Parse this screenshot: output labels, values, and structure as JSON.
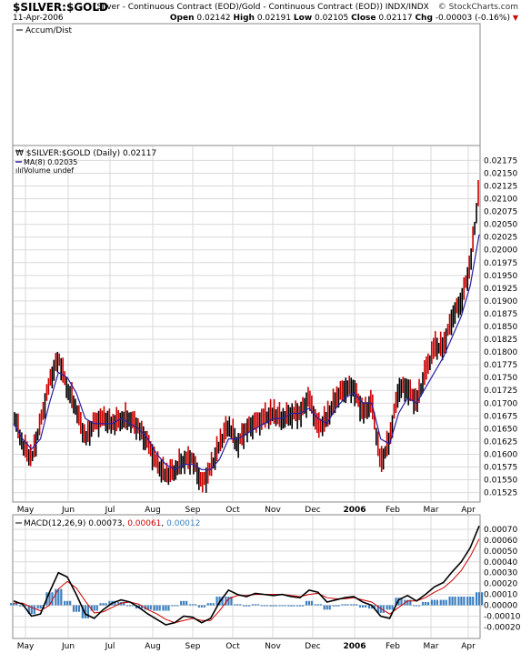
{
  "header": {
    "symbol": "$SILVER:$GOLD",
    "description": "(Silver - Continuous Contract (EOD)/Gold - Continuous Contract (EOD)) INDX/INDX",
    "source": "© StockCharts.com",
    "date": "11-Apr-2006",
    "open_label": "Open",
    "open": "0.02142",
    "high_label": "High",
    "high": "0.02191",
    "low_label": "Low",
    "low": "0.02105",
    "close_label": "Close",
    "close": "0.02117",
    "chg_label": "Chg",
    "chg": "-0.00003 (-0.16%)",
    "chg_arrow": "▼"
  },
  "accum_panel": {
    "label": "Accum/Dist"
  },
  "price_panel": {
    "legend": "$SILVER:$GOLD (Daily) 0.02117",
    "ma_legend": "MA(8) 0.02035",
    "volume_legend": "Volume undef"
  },
  "macd_panel": {
    "label_prefix": "MACD(12,26,9)",
    "v1": "0.00073",
    "v2": "0.00061",
    "v3": "0.00012"
  },
  "x_labels": [
    {
      "t": "May",
      "bold": false
    },
    {
      "t": "Jun",
      "bold": false
    },
    {
      "t": "Jul",
      "bold": false
    },
    {
      "t": "Aug",
      "bold": false
    },
    {
      "t": "Sep",
      "bold": false
    },
    {
      "t": "Oct",
      "bold": false
    },
    {
      "t": "Nov",
      "bold": false
    },
    {
      "t": "Dec",
      "bold": false
    },
    {
      "t": "2006",
      "bold": true
    },
    {
      "t": "Feb",
      "bold": false
    },
    {
      "t": "Mar",
      "bold": false
    },
    {
      "t": "Apr",
      "bold": false
    }
  ],
  "colors": {
    "up": "#000000",
    "down": "#cc0000",
    "ma": "#2a1fa0",
    "macd": "#000000",
    "signal": "#cc0000",
    "hist": "#3c7fc0",
    "grid": "#d9d9d9",
    "macd_v2": "#cc0000",
    "macd_v3": "#3c7fc0"
  },
  "chart_data": [
    {
      "type": "line",
      "panel": "price",
      "title": "$SILVER:$GOLD (Daily) 0.02117",
      "ylim": [
        0.0151,
        0.0219
      ],
      "y_ticks": [
        "0.02175",
        "0.02150",
        "0.02125",
        "0.02100",
        "0.02075",
        "0.02050",
        "0.02025",
        "0.02000",
        "0.01975",
        "0.01950",
        "0.01925",
        "0.01900",
        "0.01875",
        "0.01850",
        "0.01825",
        "0.01800",
        "0.01775",
        "0.01750",
        "0.01725",
        "0.01700",
        "0.01675",
        "0.01650",
        "0.01625",
        "0.01600",
        "0.01575",
        "0.01550",
        "0.01525"
      ],
      "x_ticks": [
        "May",
        "Jun",
        "Jul",
        "Aug",
        "Sep",
        "Oct",
        "Nov",
        "Dec",
        "2006",
        "Feb",
        "Mar",
        "Apr"
      ],
      "x": [
        0,
        5,
        10,
        15,
        20,
        25,
        30,
        35,
        40,
        45,
        50,
        55,
        60,
        65,
        70,
        75,
        80,
        85,
        90,
        95,
        100,
        105,
        110,
        115,
        120,
        125,
        130,
        135,
        140,
        145,
        150,
        155,
        160,
        165,
        170,
        175,
        180,
        185,
        190,
        195,
        200,
        205,
        210,
        215,
        220,
        225,
        230,
        235,
        240,
        245,
        250,
        255,
        260
      ],
      "series": [
        {
          "name": "$SILVER:$GOLD",
          "values": [
            0.0168,
            0.0162,
            0.0159,
            0.0166,
            0.0174,
            0.0179,
            0.0173,
            0.0169,
            0.0163,
            0.0166,
            0.0167,
            0.0166,
            0.0167,
            0.0167,
            0.0165,
            0.0162,
            0.0158,
            0.0156,
            0.0157,
            0.0159,
            0.0159,
            0.0154,
            0.0157,
            0.0162,
            0.0166,
            0.0162,
            0.0165,
            0.0166,
            0.0167,
            0.0168,
            0.0167,
            0.0168,
            0.0168,
            0.0171,
            0.0165,
            0.0167,
            0.0171,
            0.0173,
            0.0173,
            0.0168,
            0.017,
            0.0158,
            0.0163,
            0.0173,
            0.0173,
            0.017,
            0.0176,
            0.0181,
            0.0181,
            0.0187,
            0.019,
            0.0197,
            0.0212
          ]
        },
        {
          "name": "MA(8) 0.02035",
          "values": [
            0.0166,
            0.0163,
            0.0161,
            0.0163,
            0.017,
            0.0176,
            0.0175,
            0.0172,
            0.0167,
            0.0166,
            0.0166,
            0.0166,
            0.0167,
            0.0166,
            0.0165,
            0.0163,
            0.016,
            0.0158,
            0.0157,
            0.0158,
            0.0158,
            0.0157,
            0.0157,
            0.0159,
            0.0163,
            0.0163,
            0.0164,
            0.0165,
            0.0166,
            0.0167,
            0.0167,
            0.0168,
            0.0168,
            0.0169,
            0.0167,
            0.0166,
            0.0169,
            0.0171,
            0.0172,
            0.017,
            0.017,
            0.0163,
            0.0162,
            0.0168,
            0.0171,
            0.017,
            0.0173,
            0.0176,
            0.0179,
            0.0183,
            0.0187,
            0.0193,
            0.0203
          ]
        }
      ]
    },
    {
      "type": "line",
      "panel": "macd",
      "title": "MACD(12,26,9)",
      "ylim": [
        -0.00028,
        0.0008
      ],
      "y_ticks": [
        "0.00070",
        "0.00060",
        "0.00050",
        "0.00040",
        "0.00030",
        "0.00020",
        "0.00010",
        "0.00000",
        "-0.00010",
        "-0.00020"
      ],
      "x": [
        0,
        5,
        10,
        15,
        20,
        25,
        30,
        35,
        40,
        45,
        50,
        55,
        60,
        65,
        70,
        75,
        80,
        85,
        90,
        95,
        100,
        105,
        110,
        115,
        120,
        125,
        130,
        135,
        140,
        145,
        150,
        155,
        160,
        165,
        170,
        175,
        180,
        185,
        190,
        195,
        200,
        205,
        210,
        215,
        220,
        225,
        230,
        235,
        240,
        245,
        250,
        255,
        260
      ],
      "series": [
        {
          "name": "MACD",
          "values": [
            4e-05,
            1e-05,
            -0.0001,
            -8e-05,
            0.00012,
            0.0003,
            0.00026,
            0.0001,
            -8e-05,
            -0.00012,
            -4e-05,
            2e-05,
            5e-05,
            3e-05,
            -2e-05,
            -8e-05,
            -0.00013,
            -0.00018,
            -0.00016,
            -0.0001,
            -0.00011,
            -0.00016,
            -0.00012,
            3e-05,
            0.00014,
            0.0001,
            8e-05,
            0.00011,
            0.0001,
            9e-05,
            0.0001,
            8e-05,
            7e-05,
            0.00014,
            0.00012,
            3e-05,
            5e-05,
            7e-05,
            8e-05,
            3e-05,
            0.0,
            -0.0001,
            -0.00012,
            5e-05,
            9e-05,
            4e-05,
            0.0001,
            0.00017,
            0.00021,
            0.00031,
            0.0004,
            0.00053,
            0.00073
          ]
        },
        {
          "name": "Signal",
          "values": [
            2e-05,
            2e-05,
            -2e-05,
            -5e-05,
            0.0,
            0.00015,
            0.00022,
            0.00016,
            4e-05,
            -7e-05,
            -6e-05,
            -2e-05,
            2e-05,
            3e-05,
            1e-05,
            -4e-05,
            -8e-05,
            -0.00013,
            -0.00016,
            -0.00014,
            -0.00012,
            -0.00014,
            -0.00014,
            -5e-05,
            6e-05,
            9e-05,
            9e-05,
            0.0001,
            0.0001,
            0.0001,
            0.0001,
            9e-05,
            8e-05,
            0.0001,
            0.00011,
            7e-05,
            6e-05,
            6e-05,
            7e-05,
            5e-05,
            3e-05,
            -3e-05,
            -8e-05,
            -2e-05,
            4e-05,
            4e-05,
            7e-05,
            0.00012,
            0.00016,
            0.00023,
            0.00032,
            0.00045,
            0.00061
          ]
        }
      ]
    }
  ]
}
